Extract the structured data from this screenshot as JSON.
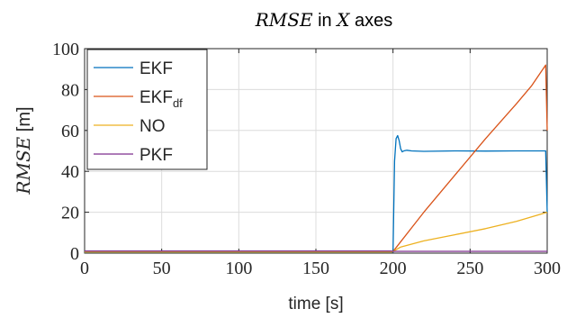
{
  "chart_data": {
    "type": "line",
    "title_math": "RMSE",
    "title_text": " in ",
    "title_var": "X",
    "title_tail": " axes",
    "xlabel": "time [s]",
    "ylabel_math": "RMSE",
    "ylabel_unit": " [m]",
    "xlim": [
      0,
      300
    ],
    "ylim": [
      0,
      100
    ],
    "xticks": [
      0,
      50,
      100,
      150,
      200,
      250,
      300
    ],
    "yticks": [
      0,
      20,
      40,
      60,
      80,
      100
    ],
    "grid": true,
    "legend_position": "top-left",
    "series": [
      {
        "name": "EKF",
        "name_sub": "",
        "color": "#0072bd",
        "x": [
          0,
          199,
          200,
          201,
          202,
          203,
          204,
          205,
          206,
          207,
          209,
          212,
          220,
          240,
          260,
          280,
          299,
          300
        ],
        "y": [
          0.4,
          0.4,
          0.5,
          45,
          56,
          57.5,
          55,
          51,
          49.5,
          50,
          50.3,
          50,
          49.8,
          50,
          49.9,
          50,
          50,
          20
        ]
      },
      {
        "name": "EKF",
        "name_sub": "df",
        "color": "#d95319",
        "x": [
          0,
          199,
          200,
          220,
          240,
          260,
          280,
          290,
          299,
          300
        ],
        "y": [
          0.5,
          0.5,
          0.8,
          20,
          38,
          56,
          73,
          82,
          92,
          60
        ]
      },
      {
        "name": "NO",
        "name_sub": "",
        "color": "#edb120",
        "x": [
          0,
          199,
          200,
          205,
          220,
          240,
          260,
          280,
          300
        ],
        "y": [
          0.5,
          0.5,
          0.8,
          3,
          6,
          9,
          12,
          15.5,
          20
        ]
      },
      {
        "name": "PKF",
        "name_sub": "",
        "color": "#7e2f8e",
        "x": [
          0,
          50,
          100,
          150,
          199,
          200,
          250,
          300
        ],
        "y": [
          1.0,
          1.0,
          1.0,
          1.0,
          1.0,
          0.9,
          0.9,
          0.9
        ]
      }
    ]
  }
}
